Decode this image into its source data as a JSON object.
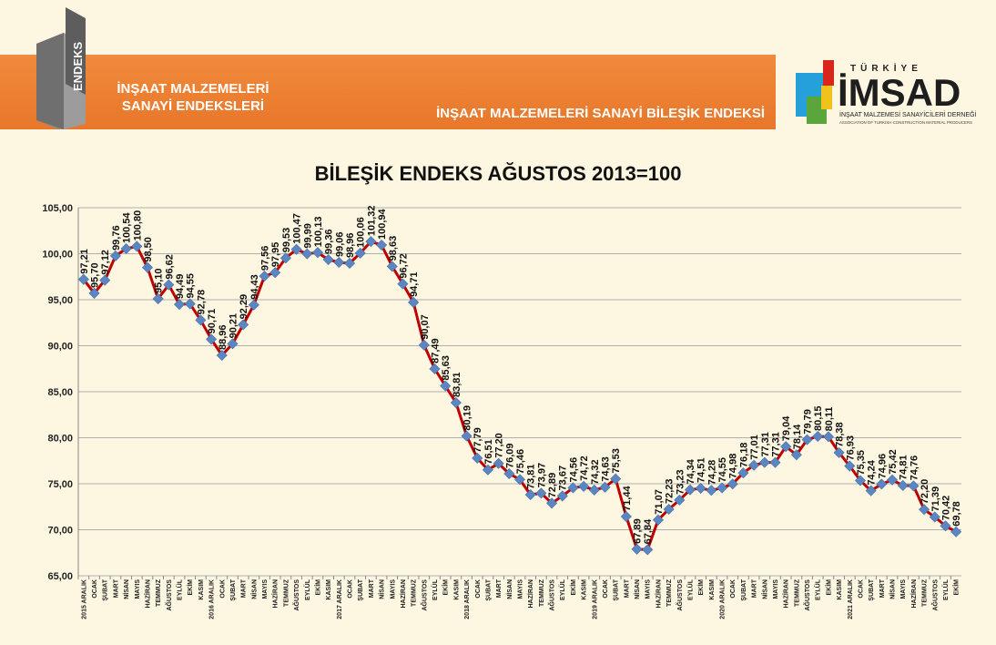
{
  "header": {
    "logo_text": "ENDEKS",
    "title_line1": "İNŞAAT MALZEMELERİ",
    "title_line2": "SANAYİ ENDEKSLERİ",
    "subtitle": "İNŞAAT MALZEMELERİ SANAYİ BİLEŞİK ENDEKSİ",
    "brand_top": "TÜRKİYE",
    "brand": "İMSAD",
    "brand_line1": "İNŞAAT MALZEMESİ SANAYİCİLERİ DERNEĞİ",
    "brand_line2": "ASSOCIATION OF TURKISH CONSTRUCTION MATERIAL PRODUCERS"
  },
  "colors": {
    "banner": "#ec7f32",
    "line": "#c00000",
    "marker": "#5b86c2",
    "grid": "#b0b0b0",
    "background": "#fdf7e2"
  },
  "chart_data": {
    "type": "line",
    "title": "BİLEŞİK ENDEKS AĞUSTOS 2013=100",
    "ylim": [
      65,
      105
    ],
    "yticks": [
      "65,00",
      "70,00",
      "75,00",
      "80,00",
      "85,00",
      "90,00",
      "95,00",
      "100,00",
      "105,00"
    ],
    "grid": "horizontal",
    "x": [
      "2015 ARALIK",
      "OCAK",
      "ŞUBAT",
      "MART",
      "NİSAN",
      "MAYIS",
      "HAZİRAN",
      "TEMMUZ",
      "AĞUSTOS",
      "EYLÜL",
      "EKİM",
      "KASIM",
      "2016 ARALIK",
      "OCAK",
      "ŞUBAT",
      "MART",
      "NİSAN",
      "MAYIS",
      "HAZİRAN",
      "TEMMUZ",
      "AĞUSTOS",
      "EYLÜL",
      "EKİM",
      "KASIM",
      "2017 ARALIK",
      "OCAK",
      "ŞUBAT",
      "MART",
      "NİSAN",
      "MAYIS",
      "HAZİRAN",
      "TEMMUZ",
      "AĞUSTOS",
      "EYLÜL",
      "EKİM",
      "KASIM",
      "2018 ARALIK",
      "OCAK",
      "ŞUBAT",
      "MART",
      "NİSAN",
      "MAYIS",
      "HAZİRAN",
      "TEMMUZ",
      "AĞUSTOS",
      "EYLÜL",
      "EKİM",
      "KASIM",
      "2019 ARALIK",
      "OCAK",
      "ŞUBAT",
      "MART",
      "NİSAN",
      "MAYIS",
      "HAZİRAN",
      "TEMMUZ",
      "AĞUSTOS",
      "EYLÜL",
      "EKİM",
      "KASIM",
      "2020 ARALIK",
      "OCAK",
      "ŞUBAT",
      "MART",
      "NİSAN",
      "MAYIS",
      "HAZİRAN",
      "TEMMUZ",
      "AĞUSTOS",
      "EYLÜL",
      "EKİM",
      "KASIM",
      "2021 ARALIK",
      "OCAK",
      "ŞUBAT",
      "MART",
      "NİSAN",
      "MAYIS",
      "HAZİRAN",
      "TEMMUZ",
      "AĞUSTOS",
      "EYLÜL",
      "EKİM"
    ],
    "values": [
      97.21,
      95.7,
      97.12,
      99.76,
      100.54,
      100.8,
      98.5,
      95.1,
      96.62,
      94.49,
      94.55,
      92.78,
      90.71,
      88.96,
      90.21,
      92.29,
      94.43,
      97.56,
      97.95,
      99.53,
      100.47,
      99.99,
      100.13,
      99.36,
      99.06,
      98.96,
      100.06,
      101.32,
      100.94,
      98.63,
      96.72,
      94.71,
      90.07,
      87.49,
      85.63,
      83.81,
      80.19,
      77.79,
      76.51,
      77.2,
      76.09,
      75.46,
      73.81,
      73.97,
      72.89,
      73.67,
      74.56,
      74.72,
      74.32,
      74.63,
      75.53,
      71.44,
      67.89,
      67.84,
      71.07,
      72.23,
      73.23,
      74.34,
      74.51,
      74.28,
      74.55,
      74.98,
      76.18,
      77.01,
      77.31,
      77.31,
      79.04,
      78.14,
      79.79,
      80.15,
      80.11,
      78.38,
      76.93,
      75.35,
      74.24,
      74.96,
      75.42,
      74.81,
      74.76,
      72.2,
      71.39,
      70.42,
      69.78
    ],
    "value_labels": [
      "97,21",
      "95,70",
      "97,12",
      "99,76",
      "100,54",
      "100,80",
      "98,50",
      "95,10",
      "96,62",
      "94,49",
      "94,55",
      "92,78",
      "90,71",
      "88,96",
      "90,21",
      "92,29",
      "94,43",
      "97,56",
      "97,95",
      "99,53",
      "100,47",
      "99,99",
      "100,13",
      "99,36",
      "99,06",
      "98,96",
      "100,06",
      "101,32",
      "100,94",
      "98,63",
      "96,72",
      "94,71",
      "90,07",
      "87,49",
      "85,63",
      "83,81",
      "80,19",
      "77,79",
      "76,51",
      "77,20",
      "76,09",
      "75,46",
      "73,81",
      "73,97",
      "72,89",
      "73,67",
      "74,56",
      "74,72",
      "74,32",
      "74,63",
      "75,53",
      "71,44",
      "67,89",
      "67,84",
      "71,07",
      "72,23",
      "73,23",
      "74,34",
      "74,51",
      "74,28",
      "74,55",
      "74,98",
      "76,18",
      "77,01",
      "77,31",
      "77,31",
      "79,04",
      "78,14",
      "79,79",
      "80,15",
      "80,11",
      "78,38",
      "76,93",
      "75,35",
      "74,24",
      "74,96",
      "75,42",
      "74,81",
      "74,76",
      "72,20",
      "71,39",
      "70,42",
      "69,78"
    ]
  }
}
